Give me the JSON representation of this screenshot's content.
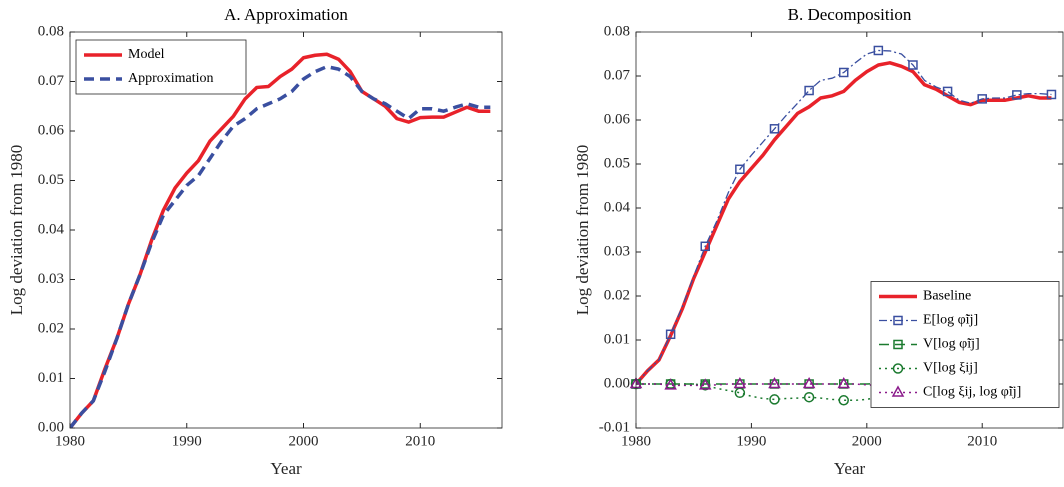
{
  "chart_data": [
    {
      "type": "line",
      "title": "A. Approximation",
      "xlabel": "Year",
      "ylabel": "Log deviation from 1980",
      "x": [
        1980,
        1981,
        1982,
        1983,
        1984,
        1985,
        1986,
        1987,
        1988,
        1989,
        1990,
        1991,
        1992,
        1993,
        1994,
        1995,
        1996,
        1997,
        1998,
        1999,
        2000,
        2001,
        2002,
        2003,
        2004,
        2005,
        2006,
        2007,
        2008,
        2009,
        2010,
        2011,
        2012,
        2013,
        2014,
        2015,
        2016
      ],
      "series": [
        {
          "name": "Model",
          "color": "#e8222a",
          "width": 3.5,
          "dash": "solid",
          "values": [
            0,
            0.003,
            0.0055,
            0.012,
            0.018,
            0.025,
            0.031,
            0.038,
            0.044,
            0.0485,
            0.0515,
            0.054,
            0.058,
            0.0605,
            0.063,
            0.0665,
            0.0688,
            0.069,
            0.071,
            0.0725,
            0.0748,
            0.0753,
            0.0755,
            0.0745,
            0.072,
            0.068,
            0.0665,
            0.065,
            0.0625,
            0.0618,
            0.0627,
            0.0628,
            0.0628,
            0.0638,
            0.0648,
            0.064,
            0.064
          ]
        },
        {
          "name": "Approximation",
          "color": "#3a4fa0",
          "width": 3.5,
          "dash": "dashed",
          "values": [
            0,
            0.003,
            0.0055,
            0.0115,
            0.018,
            0.025,
            0.031,
            0.0375,
            0.043,
            0.046,
            0.049,
            0.051,
            0.0545,
            0.058,
            0.061,
            0.0625,
            0.0645,
            0.0655,
            0.0665,
            0.068,
            0.0705,
            0.072,
            0.073,
            0.0725,
            0.071,
            0.068,
            0.0665,
            0.0655,
            0.064,
            0.0625,
            0.0645,
            0.0645,
            0.064,
            0.0648,
            0.0655,
            0.0648,
            0.0648
          ]
        }
      ],
      "xlim": [
        1980,
        2017
      ],
      "xticks": [
        1980,
        1990,
        2000,
        2010
      ],
      "ylim": [
        0,
        0.08
      ],
      "yticks": [
        {
          "value": 0,
          "label": "0.00"
        },
        0.01,
        0.02,
        0.03,
        0.04,
        0.05,
        0.06,
        0.07,
        0.08
      ],
      "legend": "upper left",
      "grid": false
    },
    {
      "type": "line",
      "title": "B. Decomposition",
      "xlabel": "Year",
      "ylabel": "Log deviation from 1980",
      "x": [
        1980,
        1981,
        1982,
        1983,
        1984,
        1985,
        1986,
        1987,
        1988,
        1989,
        1990,
        1991,
        1992,
        1993,
        1994,
        1995,
        1996,
        1997,
        1998,
        1999,
        2000,
        2001,
        2002,
        2003,
        2004,
        2005,
        2006,
        2007,
        2008,
        2009,
        2010,
        2011,
        2012,
        2013,
        2014,
        2015,
        2016
      ],
      "series": [
        {
          "name": "Baseline",
          "color": "#e8222a",
          "width": 3.5,
          "dash": "solid",
          "values": [
            0,
            0.003,
            0.0055,
            0.011,
            0.017,
            0.024,
            0.03,
            0.036,
            0.042,
            0.046,
            0.049,
            0.052,
            0.0555,
            0.0585,
            0.0615,
            0.063,
            0.065,
            0.0655,
            0.0665,
            0.069,
            0.071,
            0.0725,
            0.073,
            0.0722,
            0.071,
            0.068,
            0.067,
            0.0655,
            0.064,
            0.0635,
            0.0645,
            0.0645,
            0.0645,
            0.065,
            0.0655,
            0.065,
            0.065
          ]
        },
        {
          "name": "E[log φ̃ij]",
          "color": "#3a4fa0",
          "width": 1.3,
          "dash": "dashdot",
          "marker": "square",
          "values": [
            0,
            0.003,
            0.0055,
            0.0113,
            0.0175,
            0.0245,
            0.0313,
            0.037,
            0.0435,
            0.0488,
            0.052,
            0.055,
            0.058,
            0.061,
            0.0638,
            0.0667,
            0.069,
            0.0695,
            0.0708,
            0.073,
            0.075,
            0.0758,
            0.0757,
            0.075,
            0.0725,
            0.069,
            0.0675,
            0.0665,
            0.0645,
            0.0638,
            0.0648,
            0.065,
            0.065,
            0.0657,
            0.066,
            0.066,
            0.0658
          ]
        },
        {
          "name": "V[log φ̃ij]",
          "color": "#1b7a2f",
          "width": 1.5,
          "dash": "dashed",
          "marker": "square",
          "values": [
            0,
            0,
            0,
            0,
            0,
            0,
            0,
            0,
            0,
            0,
            0,
            0,
            0,
            0,
            0,
            0,
            0,
            0,
            0,
            0,
            0,
            0.0001,
            0.0001,
            0.0002,
            0.0003,
            0.0003,
            0.0003,
            0.0003,
            0.0004,
            0.0004,
            0.0005,
            0.0005,
            0.0005,
            0.0005,
            0.0006,
            0.0006,
            0.0007
          ]
        },
        {
          "name": "V[log ξij]",
          "color": "#1b7a2f",
          "width": 1.5,
          "dash": "dotted",
          "marker": "circle",
          "values": [
            0,
            0,
            0,
            0,
            0,
            0,
            -0.0003,
            -0.001,
            -0.0015,
            -0.002,
            -0.0028,
            -0.0033,
            -0.0035,
            -0.0033,
            -0.0032,
            -0.003,
            -0.0032,
            -0.0035,
            -0.0037,
            -0.0037,
            -0.0035,
            -0.003,
            -0.002,
            -0.0008,
            0,
            0.0005,
            0.0008,
            0.001,
            0.0012,
            0.0018,
            0.0022,
            0.0018,
            0.0013,
            0.0012,
            0.001,
            0.0008,
            0.0008
          ]
        },
        {
          "name": "C[log ξij, log φ̃ij]",
          "color": "#8b1a8b",
          "width": 1.5,
          "dash": "dotted",
          "marker": "triangle",
          "values": [
            0,
            0,
            0,
            -0.0003,
            -0.0003,
            -0.0003,
            -0.0003,
            -0.0002,
            0,
            0,
            0,
            0,
            0,
            0,
            0,
            0,
            0,
            0,
            0,
            0,
            -0.0002,
            -0.0003,
            -0.0006,
            -0.001,
            -0.0014,
            -0.0016,
            -0.0018,
            -0.002,
            -0.0022,
            -0.0023,
            -0.0025,
            -0.0025,
            -0.0024,
            -0.0023,
            -0.0022,
            -0.0022,
            -0.002
          ]
        }
      ],
      "xlim": [
        1980,
        2017
      ],
      "xticks": [
        1980,
        1990,
        2000,
        2010
      ],
      "ylim": [
        -0.01,
        0.08
      ],
      "yticks": [
        -0.01,
        {
          "value": 0,
          "label": "0.00"
        },
        0.01,
        0.02,
        0.03,
        0.04,
        0.05,
        0.06,
        0.07,
        0.08
      ],
      "legend": "center right",
      "grid": false
    }
  ]
}
